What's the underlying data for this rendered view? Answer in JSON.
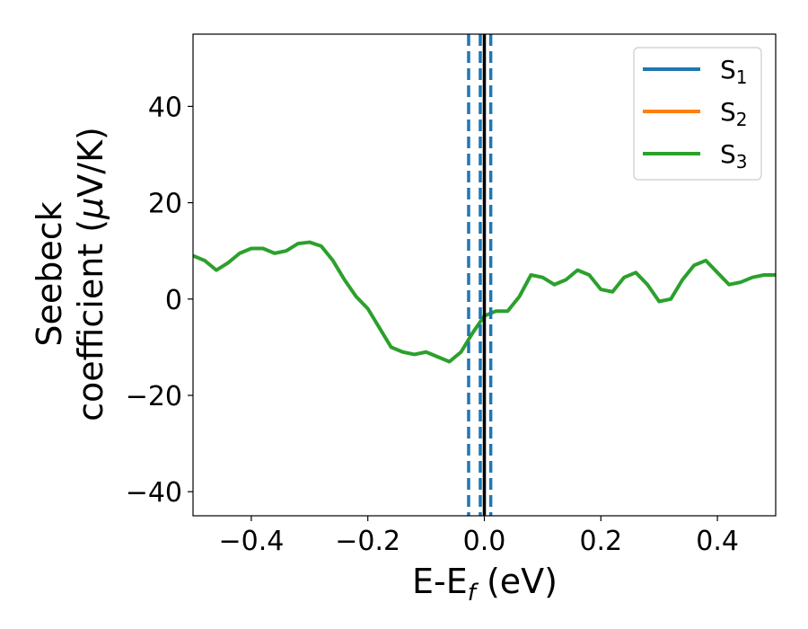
{
  "chart_data": {
    "type": "line",
    "xlabel": {
      "base": "E-E",
      "sub": "f",
      "suffix": " (eV)"
    },
    "ylabel": {
      "line1": "Seebeck",
      "line2_prefix": "coefficient  (",
      "mu": "μ",
      "line2_suffix": "V/K)"
    },
    "xlim": [
      -0.5,
      0.5
    ],
    "ylim": [
      -45,
      55
    ],
    "xticks": [
      -0.4,
      -0.2,
      0.0,
      0.2,
      0.4
    ],
    "xtick_labels": [
      "−0.4",
      "−0.2",
      "0.0",
      "0.2",
      "0.4"
    ],
    "yticks": [
      -40,
      -20,
      0,
      20,
      40
    ],
    "ytick_labels": [
      "−40",
      "−20",
      "0",
      "20",
      "40"
    ],
    "grid": false,
    "legend_position": "top-right",
    "series": [
      {
        "name": "S",
        "sub": "1",
        "color": "#1f77b4",
        "visible": false
      },
      {
        "name": "S",
        "sub": "2",
        "color": "#ff7f0e",
        "visible": false
      },
      {
        "name": "S",
        "sub": "3",
        "color": "#2ca02c",
        "visible": true,
        "x": [
          -0.5,
          -0.48,
          -0.46,
          -0.44,
          -0.42,
          -0.4,
          -0.38,
          -0.36,
          -0.34,
          -0.32,
          -0.3,
          -0.28,
          -0.26,
          -0.24,
          -0.22,
          -0.2,
          -0.18,
          -0.16,
          -0.14,
          -0.12,
          -0.1,
          -0.08,
          -0.06,
          -0.04,
          -0.02,
          0.0,
          0.02,
          0.04,
          0.06,
          0.08,
          0.1,
          0.12,
          0.14,
          0.16,
          0.18,
          0.2,
          0.22,
          0.24,
          0.26,
          0.28,
          0.3,
          0.32,
          0.34,
          0.36,
          0.38,
          0.4,
          0.42,
          0.44,
          0.46,
          0.48,
          0.5
        ],
        "y": [
          9,
          8,
          6,
          7.5,
          9.5,
          10.5,
          10.5,
          9.5,
          10,
          11.5,
          11.8,
          11,
          8,
          4,
          0.5,
          -2,
          -6,
          -10,
          -11,
          -11.5,
          -11,
          -12,
          -13,
          -11,
          -7,
          -3.5,
          -2.5,
          -2.5,
          0.5,
          5,
          4.5,
          3,
          4,
          6,
          5,
          2,
          1.5,
          4.5,
          5.5,
          3,
          -0.5,
          0,
          4,
          7,
          8,
          5.5,
          3,
          3.5,
          4.5,
          5,
          5
        ]
      }
    ],
    "vlines": [
      {
        "x": -0.027,
        "color": "#1f77b4",
        "style": "dashed"
      },
      {
        "x": -0.007,
        "color": "#1f77b4",
        "style": "dashed"
      },
      {
        "x": 0.0,
        "color": "#000000",
        "style": "solid"
      },
      {
        "x": 0.011,
        "color": "#1f77b4",
        "style": "dashed"
      }
    ]
  }
}
